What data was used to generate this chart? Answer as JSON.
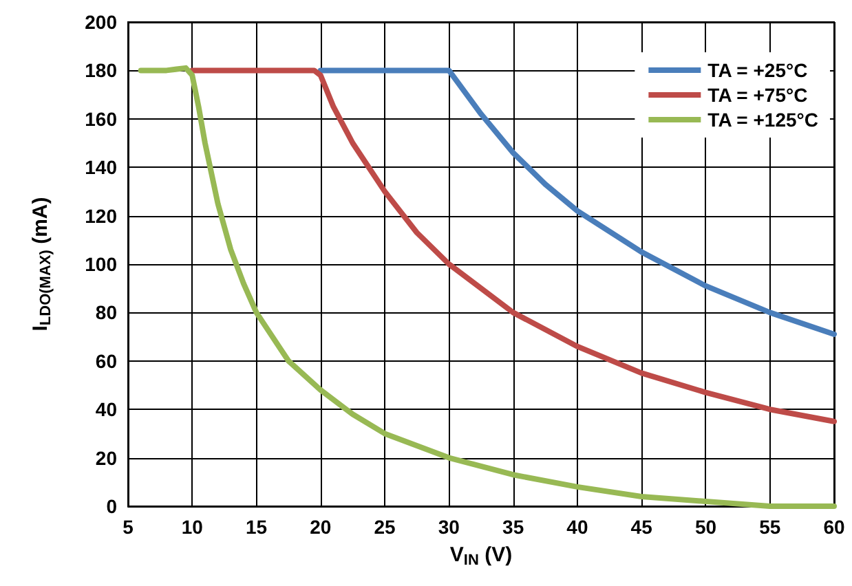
{
  "chart_data": {
    "type": "line",
    "xlabel": "V$_{IN}$ (V)",
    "ylabel": "I$_{LDO(MAX)}$ (mA)",
    "xlim": [
      5,
      60
    ],
    "xticks": [
      5,
      10,
      15,
      20,
      25,
      30,
      35,
      40,
      45,
      50,
      55,
      60
    ],
    "ylim": [
      0,
      200
    ],
    "yticks": [
      0,
      20,
      40,
      60,
      80,
      100,
      120,
      140,
      160,
      180,
      200
    ],
    "grid": true,
    "legend": "top right",
    "marker": "none",
    "line_style": "solid",
    "series": [
      {
        "name": "TA = +25°C",
        "color": "#4a7ebb",
        "x": [
          20,
          25,
          30,
          32.5,
          35,
          37.5,
          40,
          45,
          50,
          55,
          60
        ],
        "values": [
          180,
          180,
          180,
          162,
          146,
          133,
          122,
          105,
          91,
          80,
          71
        ]
      },
      {
        "name": "TA = +75°C",
        "color": "#be4b48",
        "x": [
          10,
          15,
          19.5,
          20,
          21,
          22.5,
          25,
          27.5,
          30,
          35,
          40,
          45,
          50,
          55,
          60
        ],
        "values": [
          180,
          180,
          180,
          178,
          165,
          150,
          130,
          113,
          100,
          80,
          66,
          55,
          47,
          40,
          35
        ]
      },
      {
        "name": "TA = +125°C",
        "color": "#98b954",
        "x": [
          6,
          8,
          9.5,
          10,
          10.5,
          11,
          12,
          13,
          14,
          15,
          17.5,
          20,
          22.5,
          25,
          30,
          35,
          40,
          45,
          50,
          55,
          60
        ],
        "values": [
          180,
          180,
          181,
          178,
          165,
          150,
          125,
          106,
          92,
          80,
          60,
          48,
          38,
          30,
          20,
          13,
          8,
          4,
          2,
          0,
          0
        ]
      }
    ]
  }
}
